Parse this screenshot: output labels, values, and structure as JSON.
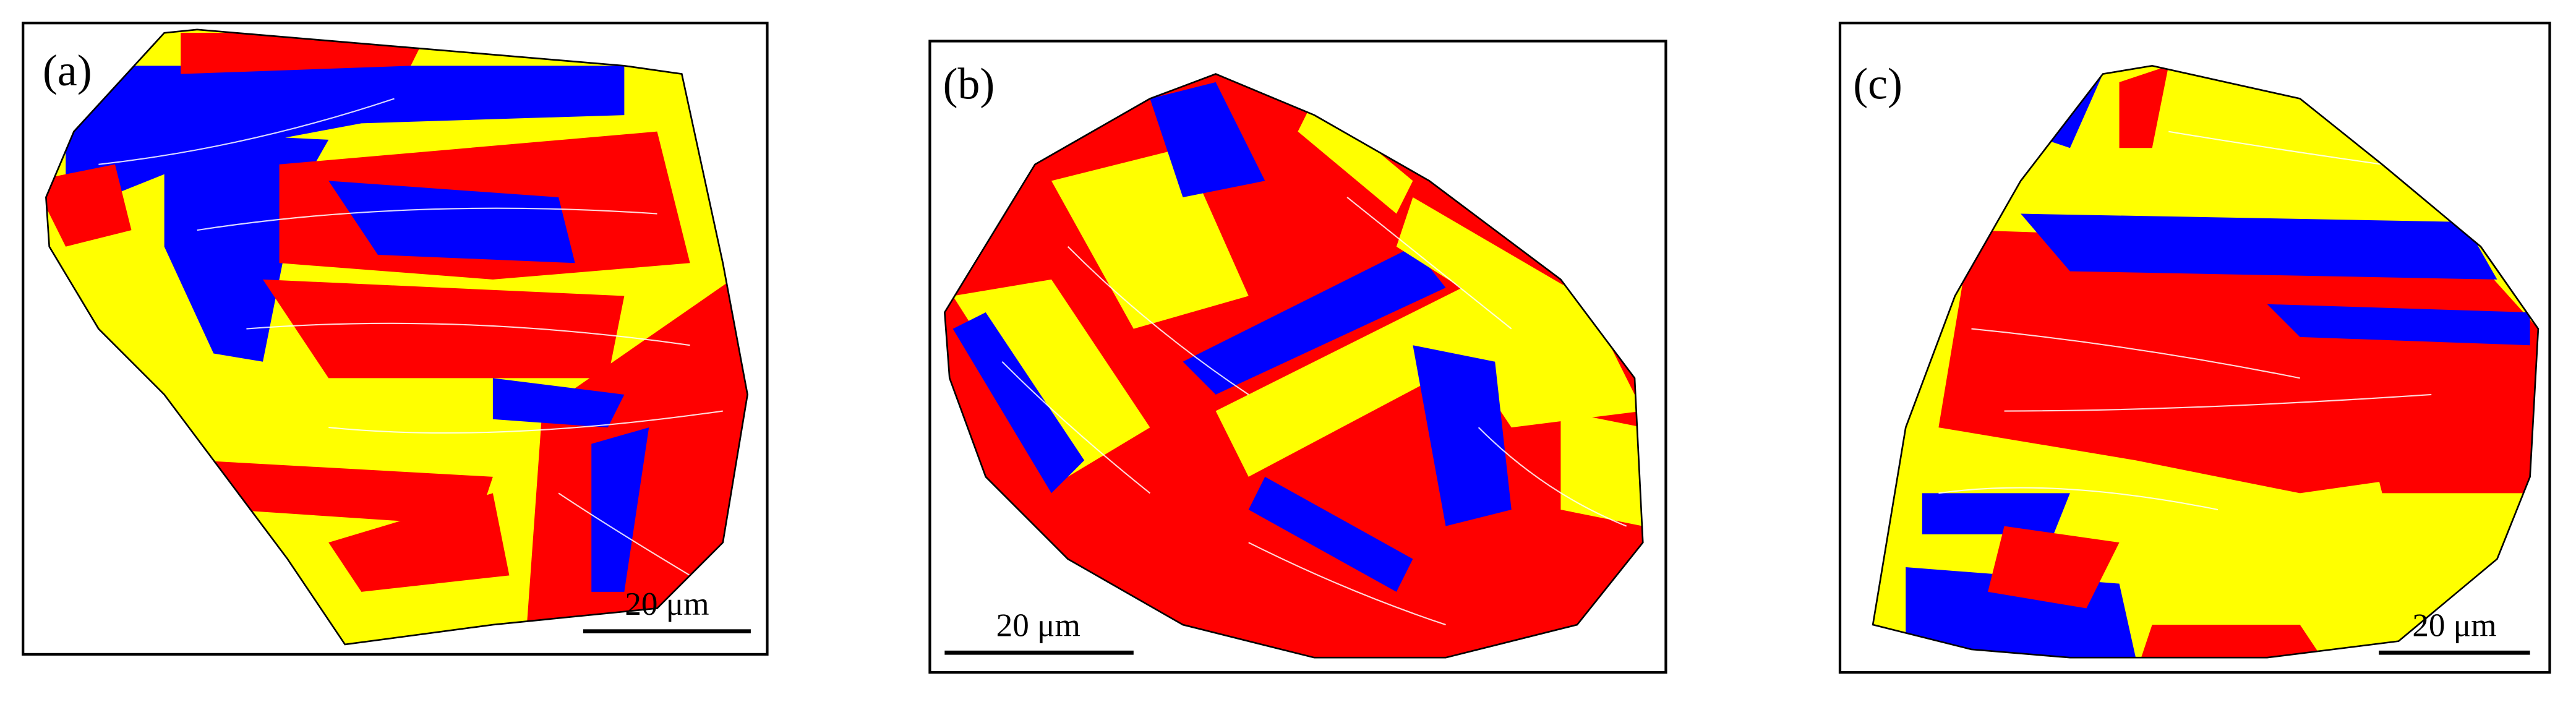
{
  "panels": [
    {
      "label": "(a)",
      "scale_bar": "20 μm"
    },
    {
      "label": "(b)",
      "scale_bar": "20 μm"
    },
    {
      "label": "(c)",
      "scale_bar": "20 μm"
    }
  ]
}
